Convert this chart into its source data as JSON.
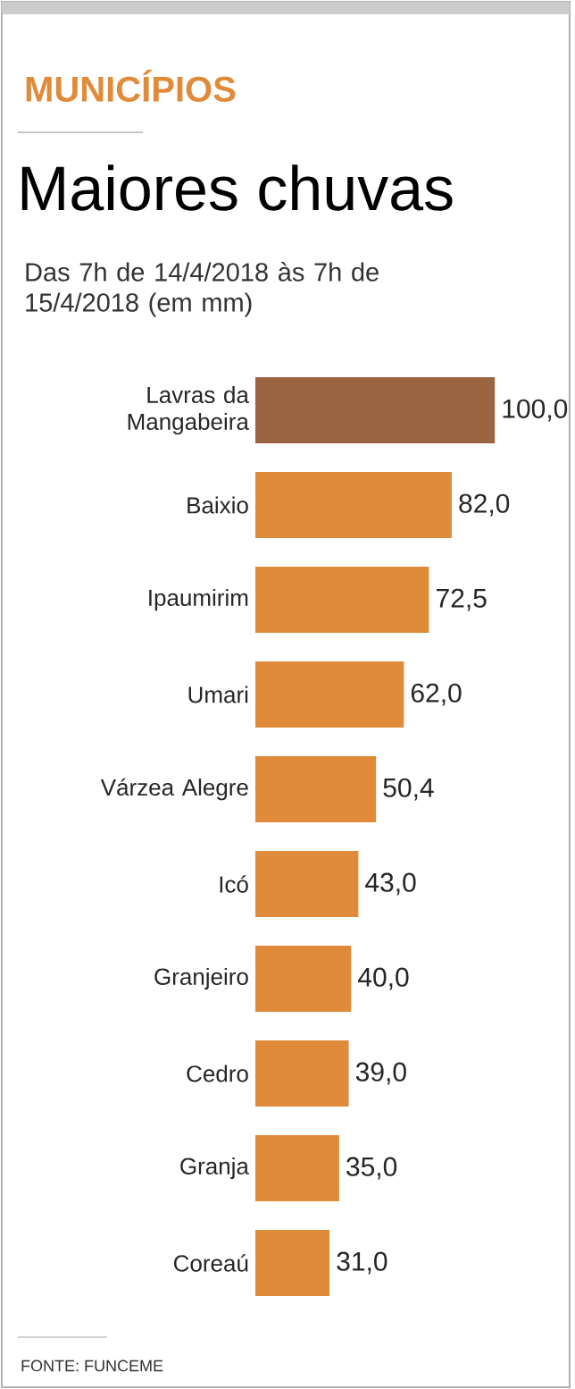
{
  "chart_data": {
    "type": "bar",
    "orientation": "horizontal",
    "subtitle": "MUNICÍPIOS",
    "title": "Maiores chuvas",
    "xlabel": null,
    "annotations": [
      "Das 7h de 14/4/2018 às 7h de 15/4/2018 (em mm)",
      "FONTE: FUNCEME"
    ],
    "categories": [
      "Lavras da Mangabeira",
      "Baixio",
      "Ipaumirim",
      "Umari",
      "Várzea Alegre",
      "Icó",
      "Granjeiro",
      "Cedro",
      "Granja",
      "Coreaú"
    ],
    "values": [
      100.0,
      82.0,
      72.5,
      62.0,
      50.4,
      43.0,
      40.0,
      39.0,
      35.0,
      31.0
    ],
    "value_labels": [
      "100,0",
      "82,0",
      "72,5",
      "62,0",
      "50,4",
      "43,0",
      "40,0",
      "39,0",
      "35,0",
      "31,0"
    ],
    "colors": [
      "#9b6440",
      "#e08b3a",
      "#e08b3a",
      "#e08b3a",
      "#e08b3a",
      "#e08b3a",
      "#e08b3a",
      "#e08b3a",
      "#e08b3a",
      "#e08b3a"
    ],
    "tick_labels": "y"
  }
}
